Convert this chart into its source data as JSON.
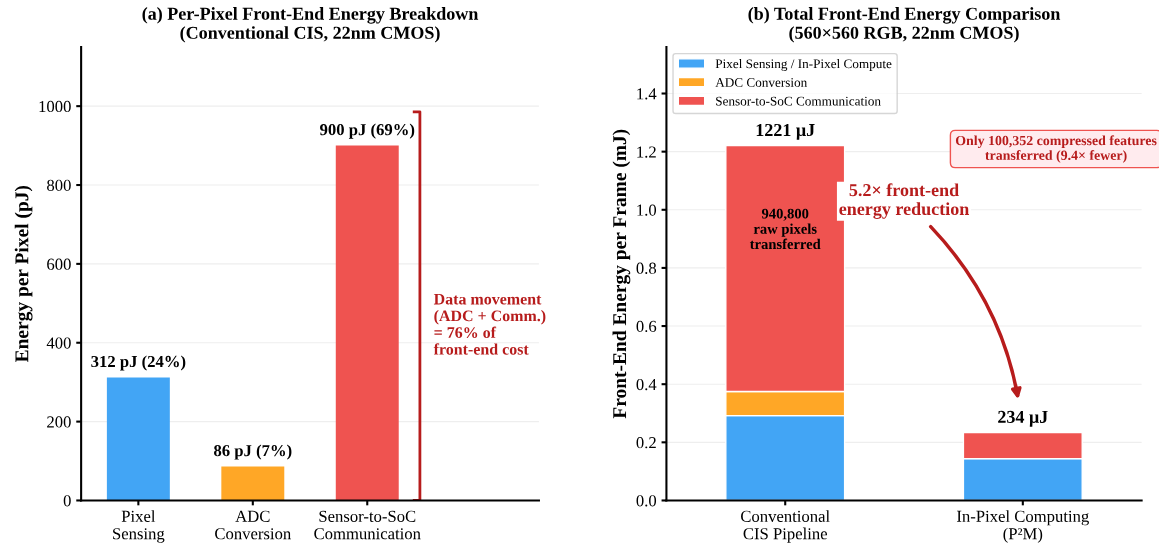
{
  "chart_data": [
    {
      "type": "bar",
      "title": "(a) Per-Pixel Front-End Energy Breakdown\n(Conventional CIS, 22nm CMOS)",
      "ylabel": "Energy per Pixel (pJ)",
      "categories": [
        "Pixel\nSensing",
        "ADC\nConversion",
        "Sensor-to-SoC\nCommunication"
      ],
      "values": [
        312,
        86,
        900
      ],
      "colors": [
        "#42a5f5",
        "#ffa726",
        "#ef5350"
      ],
      "value_labels": [
        "312 pJ (24%)",
        "86 pJ (7%)",
        "900 pJ (69%)"
      ],
      "ylim": [
        0,
        1150
      ],
      "yticks": [
        0,
        200,
        400,
        600,
        800,
        1000
      ],
      "grid": "y",
      "annotations": [
        "Data movement\n(ADC + Comm.)\n= 76% of\nfront-end cost"
      ]
    },
    {
      "type": "bar",
      "stacked": true,
      "title": "(b) Total Front-End Energy Comparison\n(560×560 RGB, 22nm CMOS)",
      "ylabel": "Front-End Energy per Frame (mJ)",
      "categories": [
        "Conventional\nCIS Pipeline",
        "In-Pixel Computing\n(P²M)"
      ],
      "series": [
        {
          "name": "Pixel Sensing / In-Pixel Compute",
          "color": "#42a5f5",
          "values": [
            0.292,
            0.144
          ]
        },
        {
          "name": "ADC Conversion",
          "color": "#ffa726",
          "values": [
            0.083,
            0
          ]
        },
        {
          "name": "Sensor-to-SoC Communication",
          "color": "#ef5350",
          "values": [
            0.846,
            0.09
          ]
        }
      ],
      "totals": [
        "1221 μJ",
        "234 μJ"
      ],
      "ylim": [
        0,
        1.56
      ],
      "yticks": [
        {
          "value": 0,
          "label": "0.0"
        },
        0.2,
        0.4,
        0.6,
        0.8,
        {
          "value": 1,
          "label": "1.0"
        },
        1.2,
        1.4
      ],
      "grid": "y",
      "legend": "top left",
      "annotations": [
        "940,800\nraw pixels\ntransferred",
        "5.2× front-end\nenergy reduction",
        "Only 100,352 compressed features\ntransferred (9.4× fewer)"
      ]
    }
  ]
}
